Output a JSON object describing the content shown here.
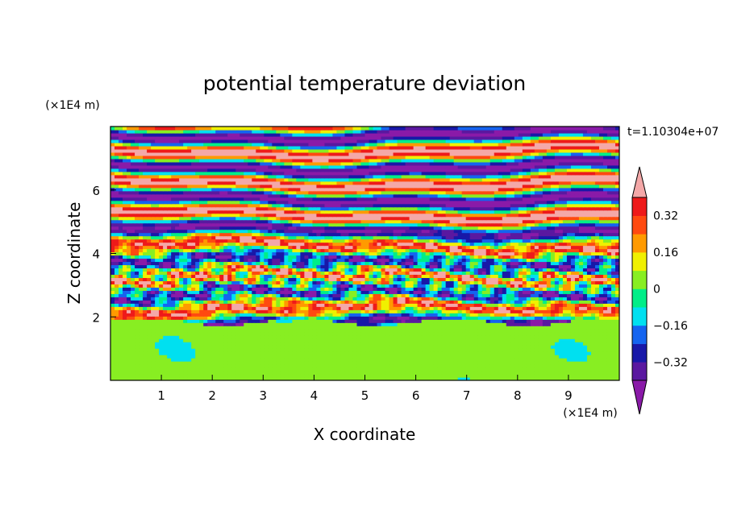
{
  "chart_data": {
    "type": "heatmap",
    "title": "potential temperature deviation",
    "xlabel": "X coordinate",
    "ylabel": "Z coordinate",
    "x_unit": "(×1E4 m)",
    "y_unit": "(×1E4 m)",
    "time_label": "t=1.10304e+07",
    "xlim": [
      0,
      10
    ],
    "ylim": [
      0,
      8
    ],
    "x_ticks": [
      1,
      2,
      3,
      4,
      5,
      6,
      7,
      8,
      9
    ],
    "y_ticks": [
      2,
      4,
      6
    ],
    "colorbar": {
      "levels": [
        -0.4,
        -0.32,
        -0.24,
        -0.16,
        -0.08,
        0,
        0.08,
        0.16,
        0.24,
        0.32,
        0.4
      ],
      "colors": [
        "#8a1aa8",
        "#5a18a0",
        "#1818a8",
        "#1464f0",
        "#00e0f0",
        "#00ee88",
        "#88ee22",
        "#f0f000",
        "#ff9a00",
        "#ff4a10",
        "#ee1a1a",
        "#f4a8a8"
      ],
      "tick_labels": [
        "0.32",
        "0.16",
        "0",
        "−0.16",
        "−0.32"
      ],
      "tick_values": [
        0.32,
        0.16,
        0,
        -0.16,
        -0.32
      ],
      "extend": "both"
    },
    "field_summary": {
      "lower_layer_z_range": [
        0,
        2
      ],
      "lower_layer_values": [
        -0.08,
        0.08
      ],
      "upper_layer_z_range": [
        2,
        8
      ],
      "upper_layer_values": [
        -0.4,
        0.4
      ]
    }
  }
}
